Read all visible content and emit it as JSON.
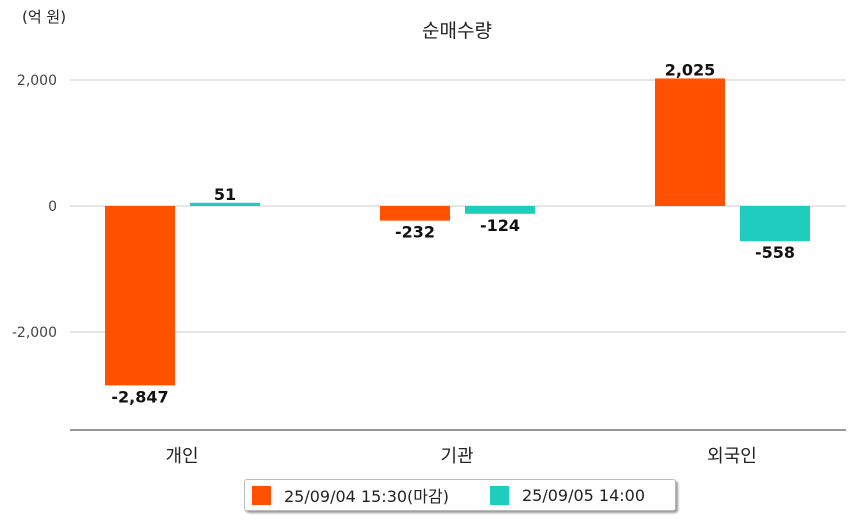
{
  "chart_data": {
    "type": "bar",
    "title": "순매수량",
    "unit_label": "(억 원)",
    "categories": [
      "개인",
      "기관",
      "외국인"
    ],
    "series": [
      {
        "name": "25/09/04 15:30(마감)",
        "color": "#ff5100",
        "values": [
          -2847,
          -232,
          2025
        ],
        "labels": [
          "-2,847",
          "-232",
          "2,025"
        ]
      },
      {
        "name": "25/09/05 14:00",
        "color": "#1ecdbd",
        "values": [
          51,
          -124,
          -558
        ],
        "labels": [
          "51",
          "-124",
          "-558"
        ]
      }
    ],
    "yticks": [
      2000,
      0,
      -2000
    ],
    "ytick_labels": [
      "2,000",
      "0",
      "-2,000"
    ],
    "ylim": [
      -3580,
      2950
    ],
    "grid": true,
    "legend_position": "bottom"
  }
}
